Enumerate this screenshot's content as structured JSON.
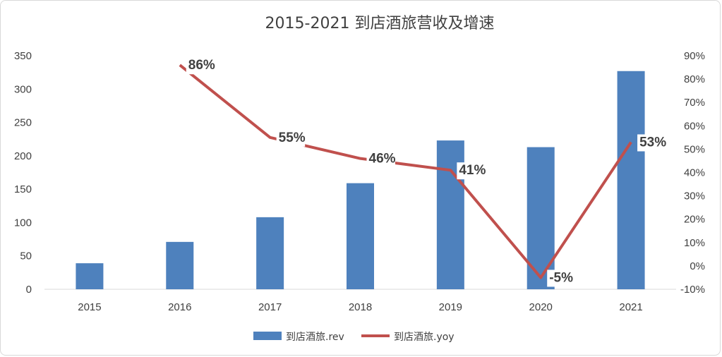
{
  "chart_data": {
    "type": "bar+line",
    "title": "2015-2021 到店酒旅营收及增速",
    "categories": [
      "2015",
      "2016",
      "2017",
      "2018",
      "2019",
      "2020",
      "2021"
    ],
    "series": [
      {
        "name": "到店酒旅.rev",
        "type": "bar",
        "axis": "left",
        "color": "#4e81bd",
        "values": [
          39,
          71,
          108,
          159,
          223,
          213,
          327
        ]
      },
      {
        "name": "到店酒旅.yoy",
        "type": "line",
        "axis": "right",
        "color": "#c0504d",
        "values": [
          null,
          86,
          55,
          46,
          41,
          -5,
          53
        ],
        "data_labels": [
          "",
          "86%",
          "55%",
          "46%",
          "41%",
          "-5%",
          "53%"
        ]
      }
    ],
    "y_left": {
      "min": 0,
      "max": 350,
      "step": 50,
      "ticks": [
        "0",
        "50",
        "100",
        "150",
        "200",
        "250",
        "300",
        "350"
      ]
    },
    "y_right": {
      "min": -10,
      "max": 90,
      "step": 10,
      "ticks": [
        "-10%",
        "0%",
        "10%",
        "20%",
        "30%",
        "40%",
        "50%",
        "60%",
        "70%",
        "80%",
        "90%"
      ]
    },
    "legend": {
      "position": "bottom",
      "entries": [
        "到店酒旅.rev",
        "到店酒旅.yoy"
      ]
    },
    "grid": false
  }
}
